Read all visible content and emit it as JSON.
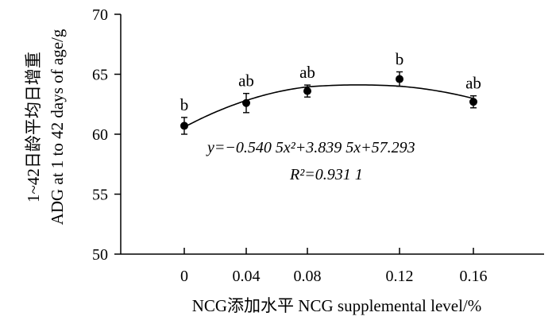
{
  "chart_data": {
    "type": "scatter",
    "x": [
      0,
      0.04,
      0.08,
      0.12,
      0.16
    ],
    "x_tick_labels": [
      "0",
      "0.04",
      "0.08",
      "0.12",
      "0.16"
    ],
    "y": [
      60.7,
      62.6,
      63.6,
      64.6,
      62.7
    ],
    "error": [
      0.7,
      0.8,
      0.5,
      0.6,
      0.5
    ],
    "significance": [
      "b",
      "ab",
      "ab",
      "b",
      "ab"
    ],
    "ylim": [
      50,
      70
    ],
    "yticks": [
      50,
      55,
      60,
      65,
      70
    ],
    "xlabel": "NCG添加水平 NCG supplemental level/%",
    "ylabel_line1": "1~42日龄平均日增重",
    "ylabel_line2": "ADG at 1 to 42 days of age/g",
    "fit": {
      "type": "quadratic",
      "a": -0.5405,
      "b": 3.8395,
      "c": 57.293,
      "x_index_domain": [
        1,
        5
      ],
      "equation_text": "y=−0.540 5x²+3.839 5x+57.293",
      "r2_text": "R²=0.931 1"
    },
    "grid": false,
    "legend": "none",
    "colors": {
      "marker": "#000000",
      "line": "#000000"
    }
  }
}
